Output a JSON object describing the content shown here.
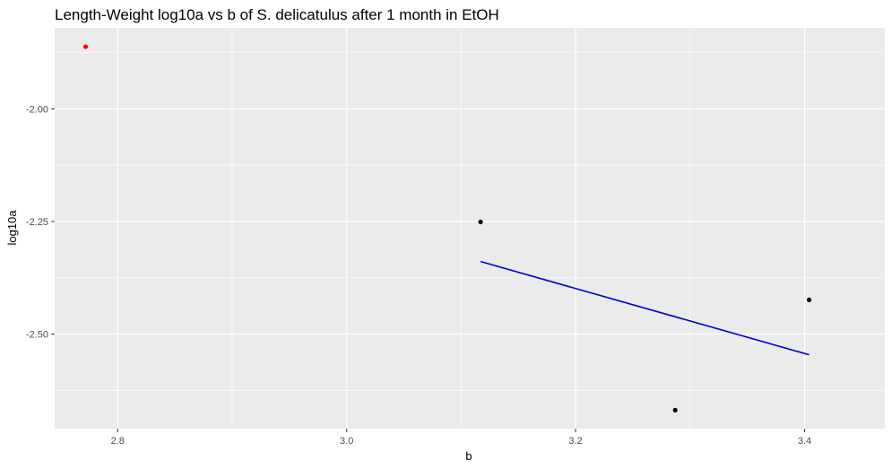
{
  "chart_data": {
    "type": "scatter",
    "title": "Length-Weight log10a vs b of S. delicatulus after 1 month in EtOH",
    "xlabel": "b",
    "ylabel": "log10a",
    "xlim": [
      2.745,
      3.47
    ],
    "ylim": [
      -2.71,
      -1.82
    ],
    "x_ticks": [
      {
        "value": 2.8,
        "label": "2.8"
      },
      {
        "value": 3.0,
        "label": "3.0"
      },
      {
        "value": 3.2,
        "label": "3.2"
      },
      {
        "value": 3.4,
        "label": "3.4"
      }
    ],
    "y_ticks": [
      {
        "value": -2.0,
        "label": "-2.00"
      },
      {
        "value": -2.25,
        "label": "-2.25"
      },
      {
        "value": -2.5,
        "label": "-2.50"
      }
    ],
    "grid": true,
    "background_color": "#ebebeb",
    "grid_color": "#ffffff",
    "series": [
      {
        "type": "scatter",
        "color": "#ff0000",
        "points": [
          {
            "x": 2.772,
            "y": -1.862
          }
        ]
      },
      {
        "type": "scatter",
        "color": "#000000",
        "points": [
          {
            "x": 3.117,
            "y": -2.251
          },
          {
            "x": 3.287,
            "y": -2.669
          },
          {
            "x": 3.404,
            "y": -2.424
          }
        ]
      },
      {
        "type": "line",
        "color": "#0000cd",
        "points": [
          {
            "x": 3.117,
            "y": -2.339
          },
          {
            "x": 3.404,
            "y": -2.546
          }
        ]
      }
    ]
  }
}
